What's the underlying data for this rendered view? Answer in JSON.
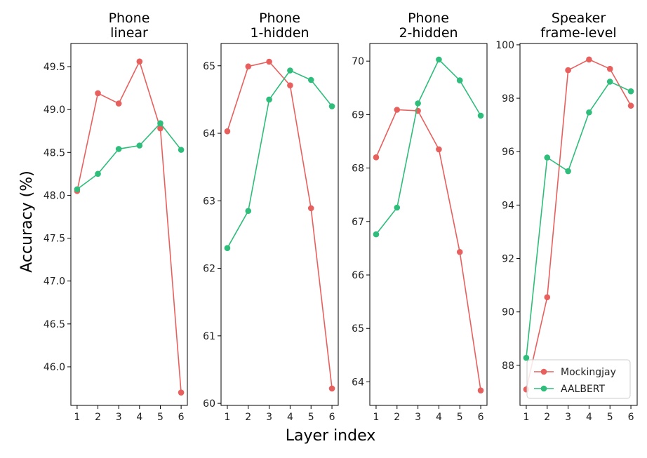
{
  "figure": {
    "xlabel": "Layer index",
    "ylabel": "Accuracy (%)"
  },
  "chart_data": [
    {
      "type": "line",
      "title": [
        "Phone",
        "linear"
      ],
      "x": [
        1,
        2,
        3,
        4,
        5,
        6
      ],
      "ylim": [
        45.55,
        49.77
      ],
      "yticks": [
        "46.0",
        "46.5",
        "47.0",
        "47.5",
        "48.0",
        "48.5",
        "49.0",
        "49.5"
      ],
      "series": [
        {
          "name": "Mockingjay",
          "color": "#e8605e",
          "values": [
            48.05,
            49.19,
            49.07,
            49.56,
            48.78,
            45.7
          ]
        },
        {
          "name": "AALBERT",
          "color": "#2ebd7a",
          "values": [
            48.07,
            48.25,
            48.54,
            48.58,
            48.84,
            48.53
          ]
        }
      ]
    },
    {
      "type": "line",
      "title": [
        "Phone",
        "1-hidden"
      ],
      "x": [
        1,
        2,
        3,
        4,
        5,
        6
      ],
      "ylim": [
        59.97,
        65.33
      ],
      "yticks": [
        "60",
        "61",
        "62",
        "63",
        "64",
        "65"
      ],
      "series": [
        {
          "name": "Mockingjay",
          "color": "#e8605e",
          "values": [
            64.03,
            64.99,
            65.06,
            64.71,
            62.89,
            60.22
          ]
        },
        {
          "name": "AALBERT",
          "color": "#2ebd7a",
          "values": [
            62.3,
            62.85,
            64.5,
            64.93,
            64.79,
            64.4
          ]
        }
      ]
    },
    {
      "type": "line",
      "title": [
        "Phone",
        "2-hidden"
      ],
      "x": [
        1,
        2,
        3,
        4,
        5,
        6
      ],
      "ylim": [
        63.56,
        70.33
      ],
      "yticks": [
        "64",
        "65",
        "66",
        "67",
        "68",
        "69",
        "70"
      ],
      "series": [
        {
          "name": "Mockingjay",
          "color": "#e8605e",
          "values": [
            68.2,
            69.09,
            69.07,
            68.35,
            66.43,
            63.84
          ]
        },
        {
          "name": "AALBERT",
          "color": "#2ebd7a",
          "values": [
            66.76,
            67.26,
            69.21,
            70.03,
            69.64,
            68.98
          ]
        }
      ]
    },
    {
      "type": "line",
      "title": [
        "Speaker",
        "frame-level"
      ],
      "x": [
        1,
        2,
        3,
        4,
        5,
        6
      ],
      "ylim": [
        86.5,
        100.05
      ],
      "yticks": [
        "88",
        "90",
        "92",
        "94",
        "96",
        "98",
        "100"
      ],
      "legend": "lower-right",
      "series": [
        {
          "name": "Mockingjay",
          "color": "#e8605e",
          "values": [
            87.1,
            90.55,
            99.05,
            99.45,
            99.1,
            97.72
          ]
        },
        {
          "name": "AALBERT",
          "color": "#2ebd7a",
          "values": [
            88.28,
            95.78,
            95.27,
            97.47,
            98.62,
            98.26
          ]
        }
      ]
    }
  ]
}
